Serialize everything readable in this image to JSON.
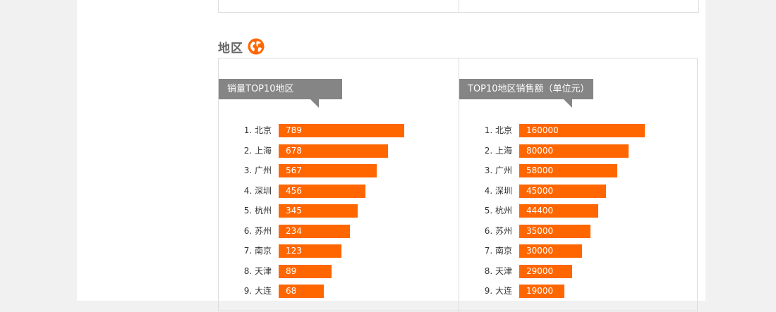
{
  "section": {
    "title": "地区",
    "icon": "globe-icon",
    "accent": "#ff6600"
  },
  "chart_data": [
    {
      "type": "bar",
      "orientation": "horizontal",
      "title": "销量TOP10地区",
      "ranks": [
        "1.",
        "2.",
        "3.",
        "4.",
        "5.",
        "6.",
        "7.",
        "8.",
        "9."
      ],
      "categories": [
        "北京",
        "上海",
        "广州",
        "深圳",
        "杭州",
        "苏州",
        "南京",
        "天津",
        "大连"
      ],
      "values": [
        789,
        678,
        567,
        456,
        345,
        234,
        123,
        89,
        68
      ],
      "bar_fraction": [
        1.0,
        0.87,
        0.78,
        0.69,
        0.63,
        0.57,
        0.5,
        0.42,
        0.36
      ],
      "bar_color": "#ff6600"
    },
    {
      "type": "bar",
      "orientation": "horizontal",
      "title": "TOP10地区销售额（单位元）",
      "ranks": [
        "1.",
        "2.",
        "3.",
        "4.",
        "5.",
        "6.",
        "7.",
        "8.",
        "9."
      ],
      "categories": [
        "北京",
        "上海",
        "广州",
        "深圳",
        "杭州",
        "苏州",
        "南京",
        "天津",
        "大连"
      ],
      "values": [
        160000,
        80000,
        58000,
        45000,
        44400,
        35000,
        30000,
        29000,
        19000
      ],
      "bar_fraction": [
        1.0,
        0.87,
        0.78,
        0.69,
        0.63,
        0.57,
        0.5,
        0.42,
        0.36
      ],
      "bar_color": "#ff6600"
    }
  ]
}
